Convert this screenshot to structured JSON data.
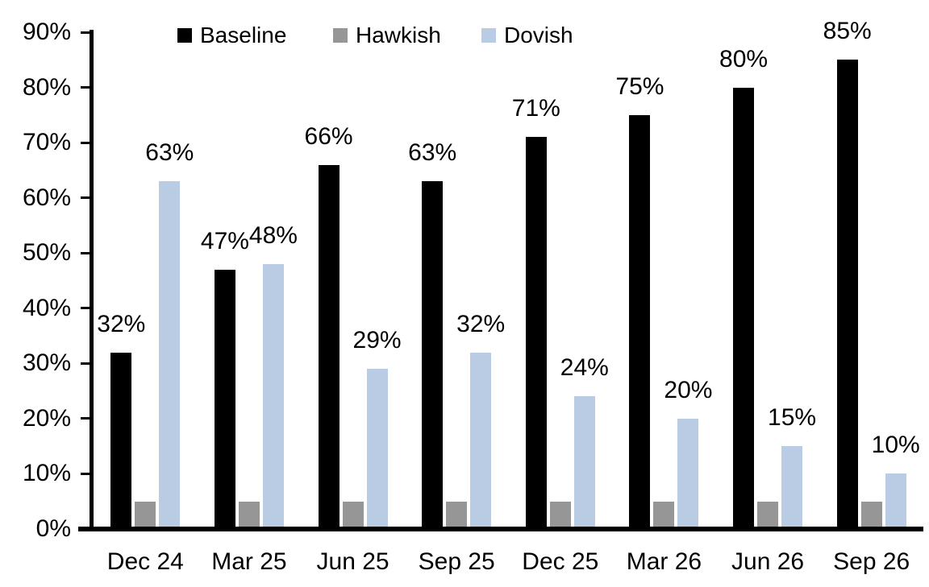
{
  "chart_data": {
    "type": "bar",
    "title": "",
    "xlabel": "",
    "ylabel": "",
    "categories": [
      "Dec 24",
      "Mar 25",
      "Jun 25",
      "Sep 25",
      "Dec 25",
      "Mar 26",
      "Jun 26",
      "Sep 26"
    ],
    "series": [
      {
        "name": "Baseline",
        "color": "#000000",
        "values": [
          32,
          47,
          66,
          63,
          71,
          75,
          80,
          85
        ],
        "labels": [
          "32%",
          "47%",
          "66%",
          "63%",
          "71%",
          "75%",
          "80%",
          "85%"
        ]
      },
      {
        "name": "Hawkish",
        "color": "#969696",
        "values": [
          5,
          5,
          5,
          5,
          5,
          5,
          5,
          5
        ],
        "labels": []
      },
      {
        "name": "Dovish",
        "color": "#B9CCE4",
        "values": [
          63,
          48,
          29,
          32,
          24,
          20,
          15,
          10
        ],
        "labels": [
          "63%",
          "48%",
          "29%",
          "32%",
          "24%",
          "20%",
          "15%",
          "10%"
        ]
      }
    ],
    "ylim": [
      0,
      90
    ],
    "ytick_step": 10,
    "ytick_labels": [
      "0%",
      "10%",
      "20%",
      "30%",
      "40%",
      "50%",
      "60%",
      "70%",
      "80%",
      "90%"
    ],
    "legend_position": "top",
    "grid": false,
    "axis_color": "#000000"
  }
}
